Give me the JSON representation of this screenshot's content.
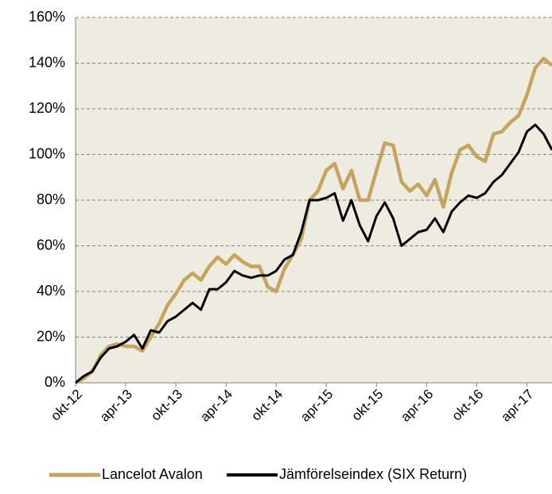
{
  "chart_data": {
    "type": "line",
    "categories": [
      "okt-12",
      null,
      null,
      null,
      null,
      null,
      "apr-13",
      null,
      null,
      null,
      null,
      null,
      "okt-13",
      null,
      null,
      null,
      null,
      null,
      "apr-14",
      null,
      null,
      null,
      null,
      null,
      "okt-14",
      null,
      null,
      null,
      null,
      null,
      "apr-15",
      null,
      null,
      null,
      null,
      null,
      "okt-15",
      null,
      null,
      null,
      null,
      null,
      "apr-16",
      null,
      null,
      null,
      null,
      null,
      "okt-16",
      null,
      null,
      null,
      null,
      null,
      "apr-17",
      null,
      null,
      null
    ],
    "series": [
      {
        "name": "Lancelot Avalon",
        "color": "#c4a45f",
        "values": [
          0,
          2,
          5,
          12,
          16,
          17,
          16,
          16,
          14,
          20,
          26,
          34,
          39,
          45,
          48,
          45,
          51,
          55,
          52,
          56,
          53,
          51,
          51,
          42,
          40,
          50,
          56,
          63,
          80,
          84,
          93,
          96,
          85,
          93,
          80,
          80,
          93,
          105,
          104,
          88,
          84,
          87,
          82,
          89,
          77,
          92,
          102,
          104,
          99,
          97,
          109,
          110,
          114,
          117,
          126,
          138,
          142,
          139
        ]
      },
      {
        "name": "Jämförelseindex (SIX Return)",
        "color": "#000000",
        "values": [
          0,
          3,
          5,
          11,
          15,
          16,
          18,
          21,
          15,
          23,
          22,
          27,
          29,
          32,
          35,
          32,
          41,
          41,
          44,
          49,
          47,
          46,
          47,
          47,
          49,
          54,
          56,
          66,
          80,
          80,
          81,
          83,
          71,
          80,
          69,
          62,
          73,
          79,
          72,
          60,
          63,
          66,
          67,
          72,
          66,
          75,
          79,
          82,
          81,
          83,
          88,
          91,
          96,
          101,
          110,
          113,
          109,
          102
        ]
      }
    ],
    "ylim": [
      0,
      160
    ],
    "yticks": [
      {
        "value": 0,
        "label": "0%"
      },
      {
        "value": 20,
        "label": "20%"
      },
      {
        "value": 40,
        "label": "40%"
      },
      {
        "value": 60,
        "label": "60%"
      },
      {
        "value": 80,
        "label": "80%"
      },
      {
        "value": 100,
        "label": "100%"
      },
      {
        "value": 120,
        "label": "120%"
      },
      {
        "value": 140,
        "label": "140%"
      },
      {
        "value": 160,
        "label": "160%"
      }
    ],
    "grid": true,
    "legend": "bottom"
  }
}
